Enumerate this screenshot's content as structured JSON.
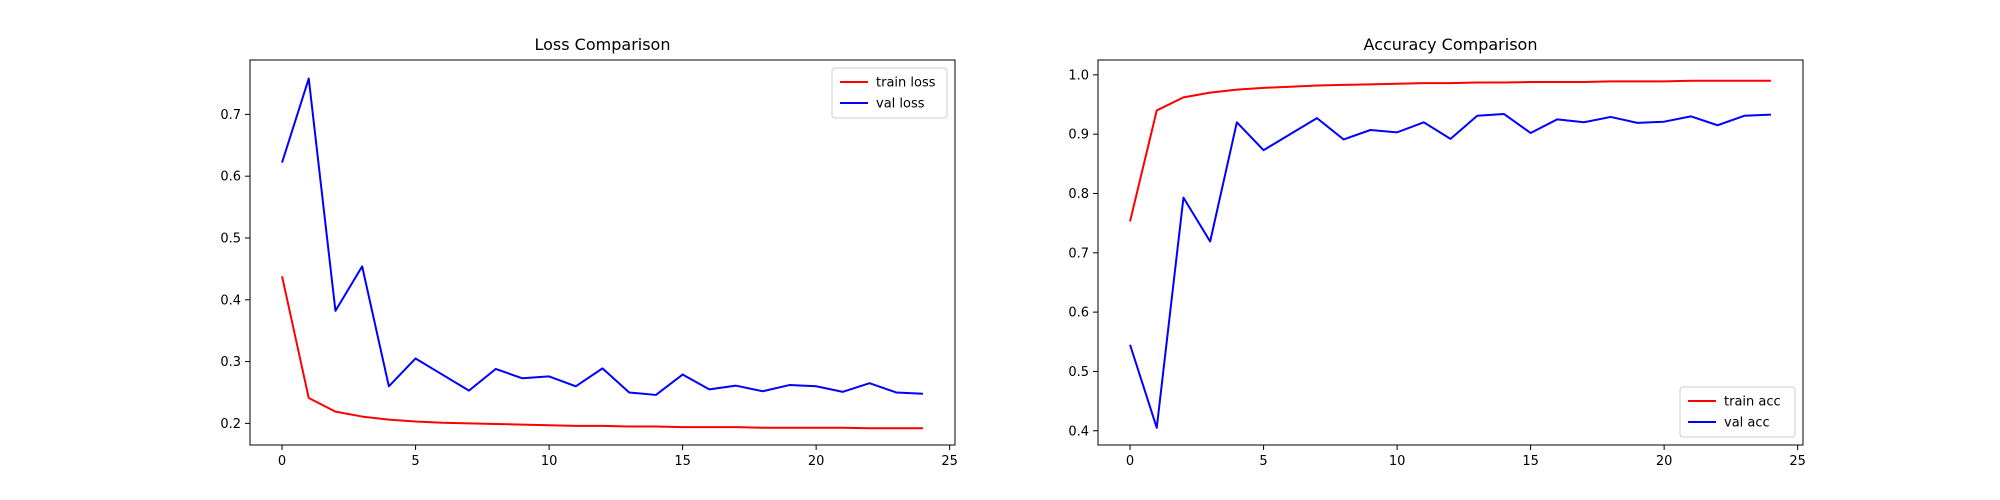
{
  "chart_data": [
    {
      "type": "line",
      "title": "Loss Comparison",
      "xlabel": "",
      "ylabel": "",
      "xlim": [
        -1.2,
        25.2
      ],
      "ylim": [
        0.165,
        0.788
      ],
      "x_ticks": [
        0,
        5,
        10,
        15,
        20,
        25
      ],
      "y_ticks": [
        0.2,
        0.3,
        0.4,
        0.5,
        0.6,
        0.7
      ],
      "legend_position": "top-right",
      "x": [
        0,
        1,
        2,
        3,
        4,
        5,
        6,
        7,
        8,
        9,
        10,
        11,
        12,
        13,
        14,
        15,
        16,
        17,
        18,
        19,
        20,
        21,
        22,
        23,
        24
      ],
      "series": [
        {
          "name": "train loss",
          "color": "#ff0000",
          "values": [
            0.438,
            0.241,
            0.219,
            0.211,
            0.206,
            0.203,
            0.201,
            0.2,
            0.199,
            0.198,
            0.197,
            0.196,
            0.196,
            0.195,
            0.195,
            0.194,
            0.194,
            0.194,
            0.193,
            0.193,
            0.193,
            0.193,
            0.192,
            0.192,
            0.192
          ]
        },
        {
          "name": "val loss",
          "color": "#0000ff",
          "values": [
            0.622,
            0.758,
            0.382,
            0.454,
            0.26,
            0.305,
            0.279,
            0.253,
            0.288,
            0.273,
            0.276,
            0.26,
            0.289,
            0.25,
            0.246,
            0.279,
            0.255,
            0.261,
            0.252,
            0.262,
            0.26,
            0.251,
            0.265,
            0.25,
            0.248
          ]
        }
      ]
    },
    {
      "type": "line",
      "title": "Accuracy Comparison",
      "xlabel": "",
      "ylabel": "",
      "xlim": [
        -1.2,
        25.2
      ],
      "ylim": [
        0.376,
        1.025
      ],
      "x_ticks": [
        0,
        5,
        10,
        15,
        20,
        25
      ],
      "y_ticks": [
        0.4,
        0.5,
        0.6,
        0.7,
        0.8,
        0.9,
        1.0
      ],
      "legend_position": "bottom-right",
      "x": [
        0,
        1,
        2,
        3,
        4,
        5,
        6,
        7,
        8,
        9,
        10,
        11,
        12,
        13,
        14,
        15,
        16,
        17,
        18,
        19,
        20,
        21,
        22,
        23,
        24
      ],
      "series": [
        {
          "name": "train acc",
          "color": "#ff0000",
          "values": [
            0.753,
            0.94,
            0.962,
            0.97,
            0.975,
            0.978,
            0.98,
            0.982,
            0.983,
            0.984,
            0.985,
            0.986,
            0.986,
            0.987,
            0.987,
            0.988,
            0.988,
            0.988,
            0.989,
            0.989,
            0.989,
            0.99,
            0.99,
            0.99,
            0.99
          ]
        },
        {
          "name": "val acc",
          "color": "#0000ff",
          "values": [
            0.545,
            0.405,
            0.793,
            0.719,
            0.92,
            0.873,
            0.9,
            0.927,
            0.891,
            0.907,
            0.903,
            0.92,
            0.892,
            0.931,
            0.934,
            0.902,
            0.925,
            0.92,
            0.929,
            0.919,
            0.921,
            0.93,
            0.915,
            0.931,
            0.933
          ]
        }
      ]
    }
  ]
}
